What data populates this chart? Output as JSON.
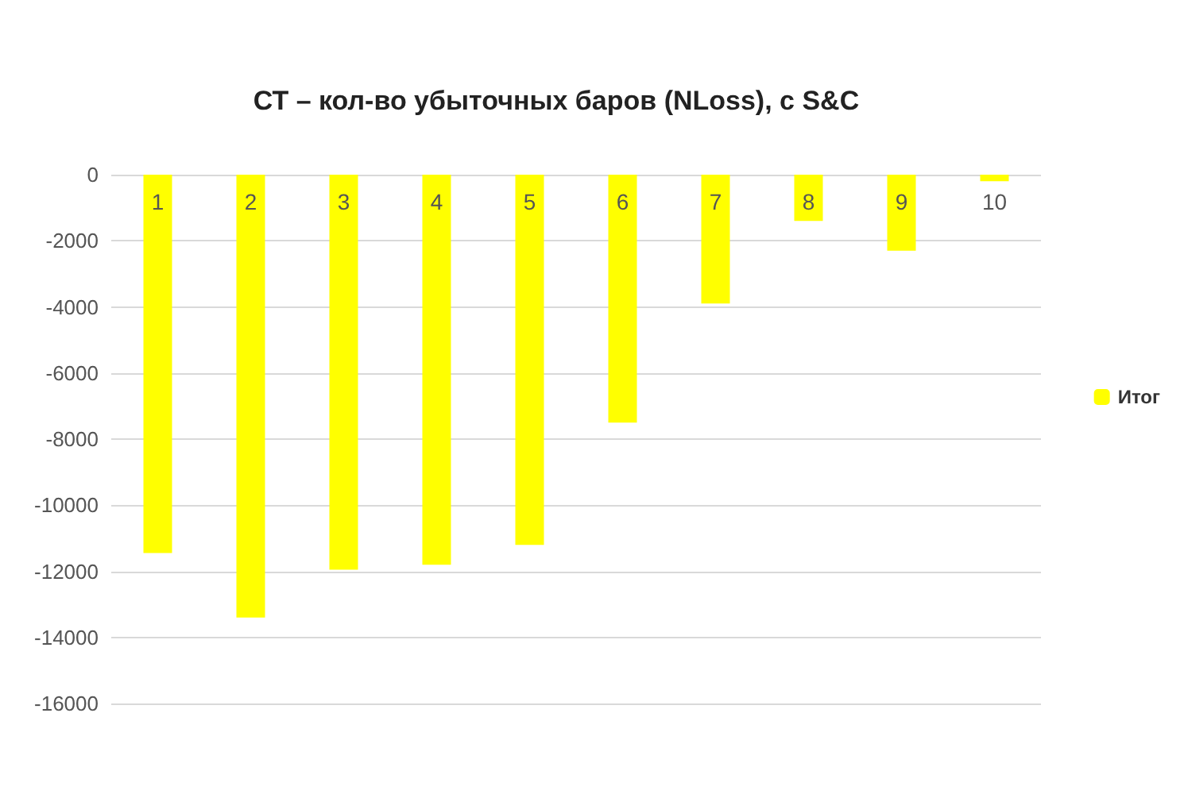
{
  "chart_data": {
    "type": "bar",
    "title": "СТ – кол-во убыточных баров (NLoss), с S&C",
    "categories": [
      "1",
      "2",
      "3",
      "4",
      "5",
      "6",
      "7",
      "8",
      "9",
      "10"
    ],
    "series": [
      {
        "name": "Итог",
        "color": "#ffff00",
        "values": [
          -11450,
          -13400,
          -11950,
          -11800,
          -11200,
          -7500,
          -3900,
          -1400,
          -2300,
          -200
        ]
      }
    ],
    "ylim": [
      -16000,
      0
    ],
    "yticks": [
      -16000,
      -14000,
      -12000,
      -10000,
      -8000,
      -6000,
      -4000,
      -2000,
      0
    ],
    "grid": "y",
    "legend": "right"
  }
}
